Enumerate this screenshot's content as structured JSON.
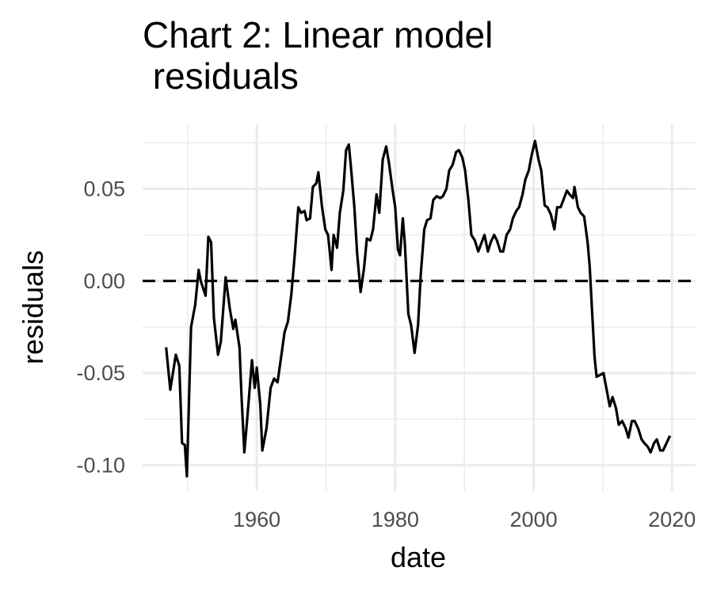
{
  "chart_data": {
    "type": "line",
    "title": "Chart 2: Linear model\n residuals",
    "xlabel": "date",
    "ylabel": "residuals",
    "color": "#000000",
    "grid": true,
    "minor_grid": true,
    "hline": 0,
    "xlim": [
      1943.5,
      2023.4
    ],
    "ylim": [
      -0.114,
      0.085
    ],
    "xticks": [
      1960,
      1980,
      2000,
      2020
    ],
    "yticks": [
      {
        "value": -0.1,
        "label": "-0.10"
      },
      -0.05,
      {
        "value": 0,
        "label": "0.00"
      },
      0.05
    ],
    "x": [
      1946.9,
      1947.5,
      1948.3,
      1948.8,
      1949.2,
      1949.6,
      1949.9,
      1950.5,
      1951.1,
      1951.6,
      1951.9,
      1952.6,
      1953.0,
      1953.4,
      1953.8,
      1954.4,
      1954.8,
      1955.5,
      1956.1,
      1956.6,
      1956.9,
      1957.5,
      1957.8,
      1958.2,
      1958.7,
      1959.3,
      1959.7,
      1960.0,
      1960.5,
      1960.8,
      1961.4,
      1962.0,
      1962.5,
      1963.0,
      1963.6,
      1964.0,
      1964.5,
      1965.0,
      1965.5,
      1966.0,
      1966.4,
      1966.9,
      1967.2,
      1967.7,
      1968.1,
      1968.6,
      1968.9,
      1969.4,
      1969.9,
      1970.3,
      1970.8,
      1971.1,
      1971.6,
      1972.0,
      1972.5,
      1972.9,
      1973.3,
      1973.6,
      1974.1,
      1974.5,
      1975.0,
      1975.5,
      1975.9,
      1976.4,
      1976.8,
      1977.3,
      1977.7,
      1978.2,
      1978.7,
      1979.1,
      1979.6,
      1980.0,
      1980.4,
      1980.7,
      1981.1,
      1981.4,
      1981.9,
      1982.3,
      1982.8,
      1983.3,
      1983.7,
      1984.2,
      1984.6,
      1985.1,
      1985.5,
      1986.0,
      1986.5,
      1986.9,
      1987.4,
      1987.8,
      1988.3,
      1988.8,
      1989.2,
      1989.7,
      1990.1,
      1990.6,
      1991.0,
      1991.5,
      1992.0,
      1992.4,
      1992.9,
      1993.4,
      1993.8,
      1994.3,
      1994.7,
      1995.2,
      1995.6,
      1996.1,
      1996.6,
      1997.0,
      1997.5,
      1997.9,
      1998.4,
      1998.8,
      1999.3,
      1999.7,
      2000.2,
      2000.7,
      2001.1,
      2001.6,
      2002.0,
      2002.5,
      2003.0,
      2003.4,
      2003.9,
      2004.3,
      2004.8,
      2005.2,
      2005.7,
      2005.9,
      2006.4,
      2006.8,
      2007.3,
      2007.8,
      2008.1,
      2008.5,
      2008.8,
      2009.1,
      2009.6,
      2010.1,
      2010.5,
      2011.0,
      2011.4,
      2011.9,
      2012.3,
      2012.8,
      2013.3,
      2013.7,
      2014.2,
      2014.6,
      2015.1,
      2015.6,
      2016.0,
      2016.5,
      2016.9,
      2017.4,
      2017.8,
      2018.3,
      2018.7,
      2019.2,
      2019.7
    ],
    "values": [
      -0.036,
      -0.059,
      -0.04,
      -0.046,
      -0.088,
      -0.089,
      -0.106,
      -0.025,
      -0.013,
      0.006,
      0.0,
      -0.008,
      0.024,
      0.021,
      -0.02,
      -0.04,
      -0.033,
      0.002,
      -0.015,
      -0.026,
      -0.021,
      -0.036,
      -0.063,
      -0.093,
      -0.071,
      -0.043,
      -0.058,
      -0.047,
      -0.067,
      -0.092,
      -0.08,
      -0.058,
      -0.053,
      -0.055,
      -0.039,
      -0.028,
      -0.022,
      -0.007,
      0.015,
      0.04,
      0.037,
      0.038,
      0.033,
      0.034,
      0.051,
      0.053,
      0.059,
      0.041,
      0.028,
      0.025,
      0.006,
      0.025,
      0.018,
      0.037,
      0.049,
      0.071,
      0.074,
      0.062,
      0.04,
      0.015,
      -0.006,
      0.007,
      0.023,
      0.022,
      0.028,
      0.047,
      0.037,
      0.066,
      0.073,
      0.064,
      0.05,
      0.04,
      0.017,
      0.014,
      0.034,
      0.02,
      -0.018,
      -0.024,
      -0.039,
      -0.024,
      0.004,
      0.028,
      0.033,
      0.034,
      0.044,
      0.046,
      0.045,
      0.046,
      0.05,
      0.06,
      0.063,
      0.07,
      0.071,
      0.067,
      0.06,
      0.043,
      0.025,
      0.022,
      0.016,
      0.02,
      0.025,
      0.016,
      0.021,
      0.025,
      0.022,
      0.016,
      0.016,
      0.025,
      0.028,
      0.034,
      0.038,
      0.04,
      0.047,
      0.055,
      0.06,
      0.068,
      0.076,
      0.066,
      0.06,
      0.041,
      0.04,
      0.036,
      0.028,
      0.04,
      0.04,
      0.044,
      0.049,
      0.047,
      0.045,
      0.051,
      0.04,
      0.037,
      0.035,
      0.021,
      0.008,
      -0.02,
      -0.041,
      -0.052,
      -0.051,
      -0.05,
      -0.058,
      -0.068,
      -0.063,
      -0.069,
      -0.078,
      -0.076,
      -0.08,
      -0.085,
      -0.076,
      -0.076,
      -0.08,
      -0.086,
      -0.088,
      -0.09,
      -0.093,
      -0.088,
      -0.086,
      -0.092,
      -0.092,
      -0.088,
      -0.084
    ]
  }
}
